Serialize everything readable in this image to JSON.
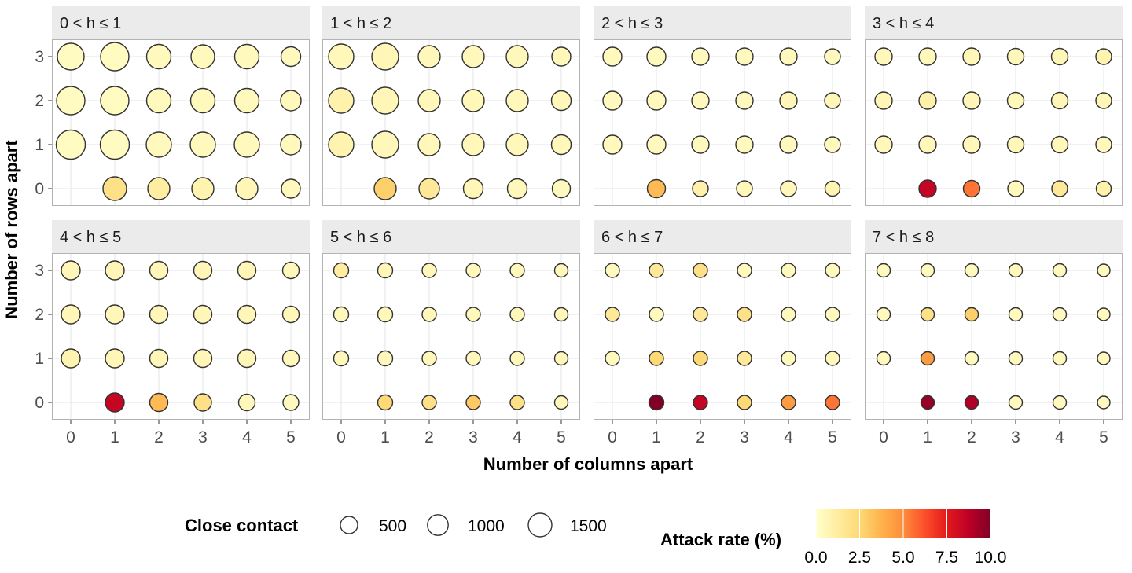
{
  "chart_data": {
    "type": "scatter",
    "subtype": "faceted bubble grid",
    "xlabel": "Number of columns apart",
    "ylabel": "Number of rows apart",
    "x_ticks": [
      "0",
      "1",
      "2",
      "3",
      "4",
      "5"
    ],
    "y_ticks": [
      "0",
      "1",
      "2",
      "3"
    ],
    "xlim": [
      0,
      5
    ],
    "ylim": [
      0,
      3
    ],
    "grid": true,
    "size_legend": {
      "title": "Close contact",
      "values": [
        500,
        1000,
        1500
      ],
      "labels": [
        "500",
        "1000",
        "1500"
      ]
    },
    "color_legend": {
      "title": "Attack rate (%)",
      "range": [
        0,
        10
      ],
      "ticks": [
        "0.0",
        "2.5",
        "5.0",
        "7.5",
        "10.0"
      ],
      "palette": [
        "#ffffcc",
        "#ffeda0",
        "#fed976",
        "#feb24c",
        "#fd8d3c",
        "#fc4e2a",
        "#e31a1c",
        "#bd0026",
        "#800026"
      ]
    },
    "legend_position": "bottom",
    "facets": [
      {
        "label": "0 < h ≤ 1",
        "close_contact": [
          [
            null,
            1500,
            1200,
            1200,
            1200,
            700
          ],
          [
            2800,
            2800,
            1840,
            1840,
            1840,
            940
          ],
          [
            2600,
            2600,
            1670,
            1670,
            1670,
            940
          ],
          [
            2200,
            2600,
            1670,
            1500,
            1670,
            815
          ]
        ],
        "attack_rate": [
          [
            null,
            2.0,
            1.2,
            0.8,
            0.6,
            0.4
          ],
          [
            0.3,
            0.3,
            0.4,
            0.4,
            0.4,
            0.4
          ],
          [
            0.3,
            0.3,
            0.4,
            0.4,
            0.4,
            0.4
          ],
          [
            0.3,
            0.3,
            0.4,
            0.4,
            0.4,
            0.4
          ]
        ]
      },
      {
        "label": "1 < h ≤ 2",
        "close_contact": [
          [
            null,
            1200,
            940,
            815,
            815,
            600
          ],
          [
            1840,
            2200,
            1200,
            1200,
            1200,
            815
          ],
          [
            1840,
            2200,
            1200,
            1200,
            1200,
            815
          ],
          [
            1840,
            2200,
            1200,
            1200,
            1200,
            700
          ]
        ],
        "attack_rate": [
          [
            null,
            2.8,
            1.5,
            0.6,
            0.5,
            0.4
          ],
          [
            0.8,
            0.5,
            0.5,
            0.5,
            0.5,
            0.5
          ],
          [
            0.9,
            0.6,
            0.5,
            0.5,
            0.5,
            0.5
          ],
          [
            0.5,
            0.6,
            0.5,
            0.5,
            0.5,
            0.5
          ]
        ]
      },
      {
        "label": "2 < h ≤ 3",
        "close_contact": [
          [
            null,
            600,
            340,
            340,
            340,
            270
          ],
          [
            700,
            700,
            500,
            500,
            500,
            340
          ],
          [
            700,
            700,
            500,
            500,
            500,
            340
          ],
          [
            700,
            700,
            500,
            500,
            500,
            340
          ]
        ],
        "attack_rate": [
          [
            null,
            3.5,
            1.0,
            0.5,
            0.5,
            0.7
          ],
          [
            0.4,
            0.4,
            0.4,
            0.4,
            0.4,
            0.4
          ],
          [
            0.4,
            0.4,
            0.4,
            0.4,
            0.6,
            0.6
          ],
          [
            0.4,
            0.4,
            0.4,
            0.4,
            0.4,
            0.4
          ]
        ]
      },
      {
        "label": "3 < h ≤ 4",
        "close_contact": [
          [
            null,
            500,
            420,
            340,
            340,
            270
          ],
          [
            500,
            500,
            500,
            420,
            420,
            340
          ],
          [
            500,
            500,
            500,
            420,
            420,
            340
          ],
          [
            500,
            500,
            500,
            420,
            420,
            340
          ]
        ],
        "attack_rate": [
          [
            null,
            8.5,
            5.5,
            0.4,
            1.5,
            1.0
          ],
          [
            0.5,
            0.5,
            0.5,
            0.5,
            0.5,
            0.5
          ],
          [
            0.6,
            1.0,
            0.6,
            0.5,
            0.6,
            0.6
          ],
          [
            0.5,
            0.5,
            0.6,
            0.5,
            0.6,
            0.8
          ]
        ]
      },
      {
        "label": "4 < h ≤ 5",
        "close_contact": [
          [
            null,
            700,
            600,
            500,
            420,
            340
          ],
          [
            700,
            700,
            600,
            600,
            600,
            420
          ],
          [
            700,
            700,
            600,
            600,
            600,
            420
          ],
          [
            700,
            700,
            600,
            600,
            600,
            420
          ]
        ],
        "attack_rate": [
          [
            null,
            8.5,
            3.5,
            2.0,
            0.5,
            0.4
          ],
          [
            0.8,
            0.6,
            0.6,
            0.6,
            0.6,
            0.5
          ],
          [
            0.6,
            0.6,
            0.6,
            0.6,
            0.6,
            0.5
          ],
          [
            0.6,
            0.6,
            0.6,
            0.6,
            0.6,
            0.5
          ]
        ]
      },
      {
        "label": "5 < h ≤ 6",
        "close_contact": [
          [
            null,
            270,
            200,
            200,
            200,
            150
          ],
          [
            270,
            270,
            200,
            200,
            200,
            150
          ],
          [
            270,
            270,
            200,
            200,
            200,
            150
          ],
          [
            270,
            270,
            200,
            200,
            200,
            150
          ]
        ],
        "attack_rate": [
          [
            null,
            2.5,
            2.0,
            3.0,
            2.0,
            0.5
          ],
          [
            0.5,
            0.5,
            0.5,
            0.5,
            0.5,
            0.5
          ],
          [
            0.5,
            0.5,
            0.5,
            0.5,
            0.5,
            0.5
          ],
          [
            1.2,
            0.6,
            0.5,
            0.5,
            0.5,
            0.5
          ]
        ]
      },
      {
        "label": "6 < h ≤ 7",
        "close_contact": [
          [
            null,
            270,
            200,
            200,
            200,
            200
          ],
          [
            200,
            200,
            200,
            200,
            200,
            200
          ],
          [
            200,
            200,
            200,
            200,
            200,
            200
          ],
          [
            200,
            200,
            200,
            200,
            200,
            200
          ]
        ],
        "attack_rate": [
          [
            null,
            10.0,
            8.5,
            2.5,
            4.5,
            5.5
          ],
          [
            0.4,
            2.5,
            2.5,
            1.5,
            0.4,
            0.4
          ],
          [
            1.5,
            0.4,
            1.5,
            2.0,
            0.4,
            0.4
          ],
          [
            0.4,
            1.5,
            2.0,
            0.4,
            0.4,
            0.4
          ]
        ]
      },
      {
        "label": "7 < h ≤ 8",
        "close_contact": [
          [
            null,
            150,
            150,
            150,
            150,
            100
          ],
          [
            150,
            150,
            150,
            150,
            150,
            100
          ],
          [
            150,
            150,
            150,
            150,
            150,
            100
          ],
          [
            150,
            150,
            150,
            150,
            150,
            100
          ]
        ],
        "attack_rate": [
          [
            null,
            9.5,
            9.0,
            0.4,
            0.4,
            0.4
          ],
          [
            0.4,
            4.5,
            0.4,
            0.4,
            0.4,
            0.4
          ],
          [
            0.4,
            2.0,
            2.8,
            0.4,
            0.4,
            0.4
          ],
          [
            0.4,
            0.4,
            0.4,
            0.4,
            0.4,
            0.4
          ]
        ]
      }
    ]
  }
}
